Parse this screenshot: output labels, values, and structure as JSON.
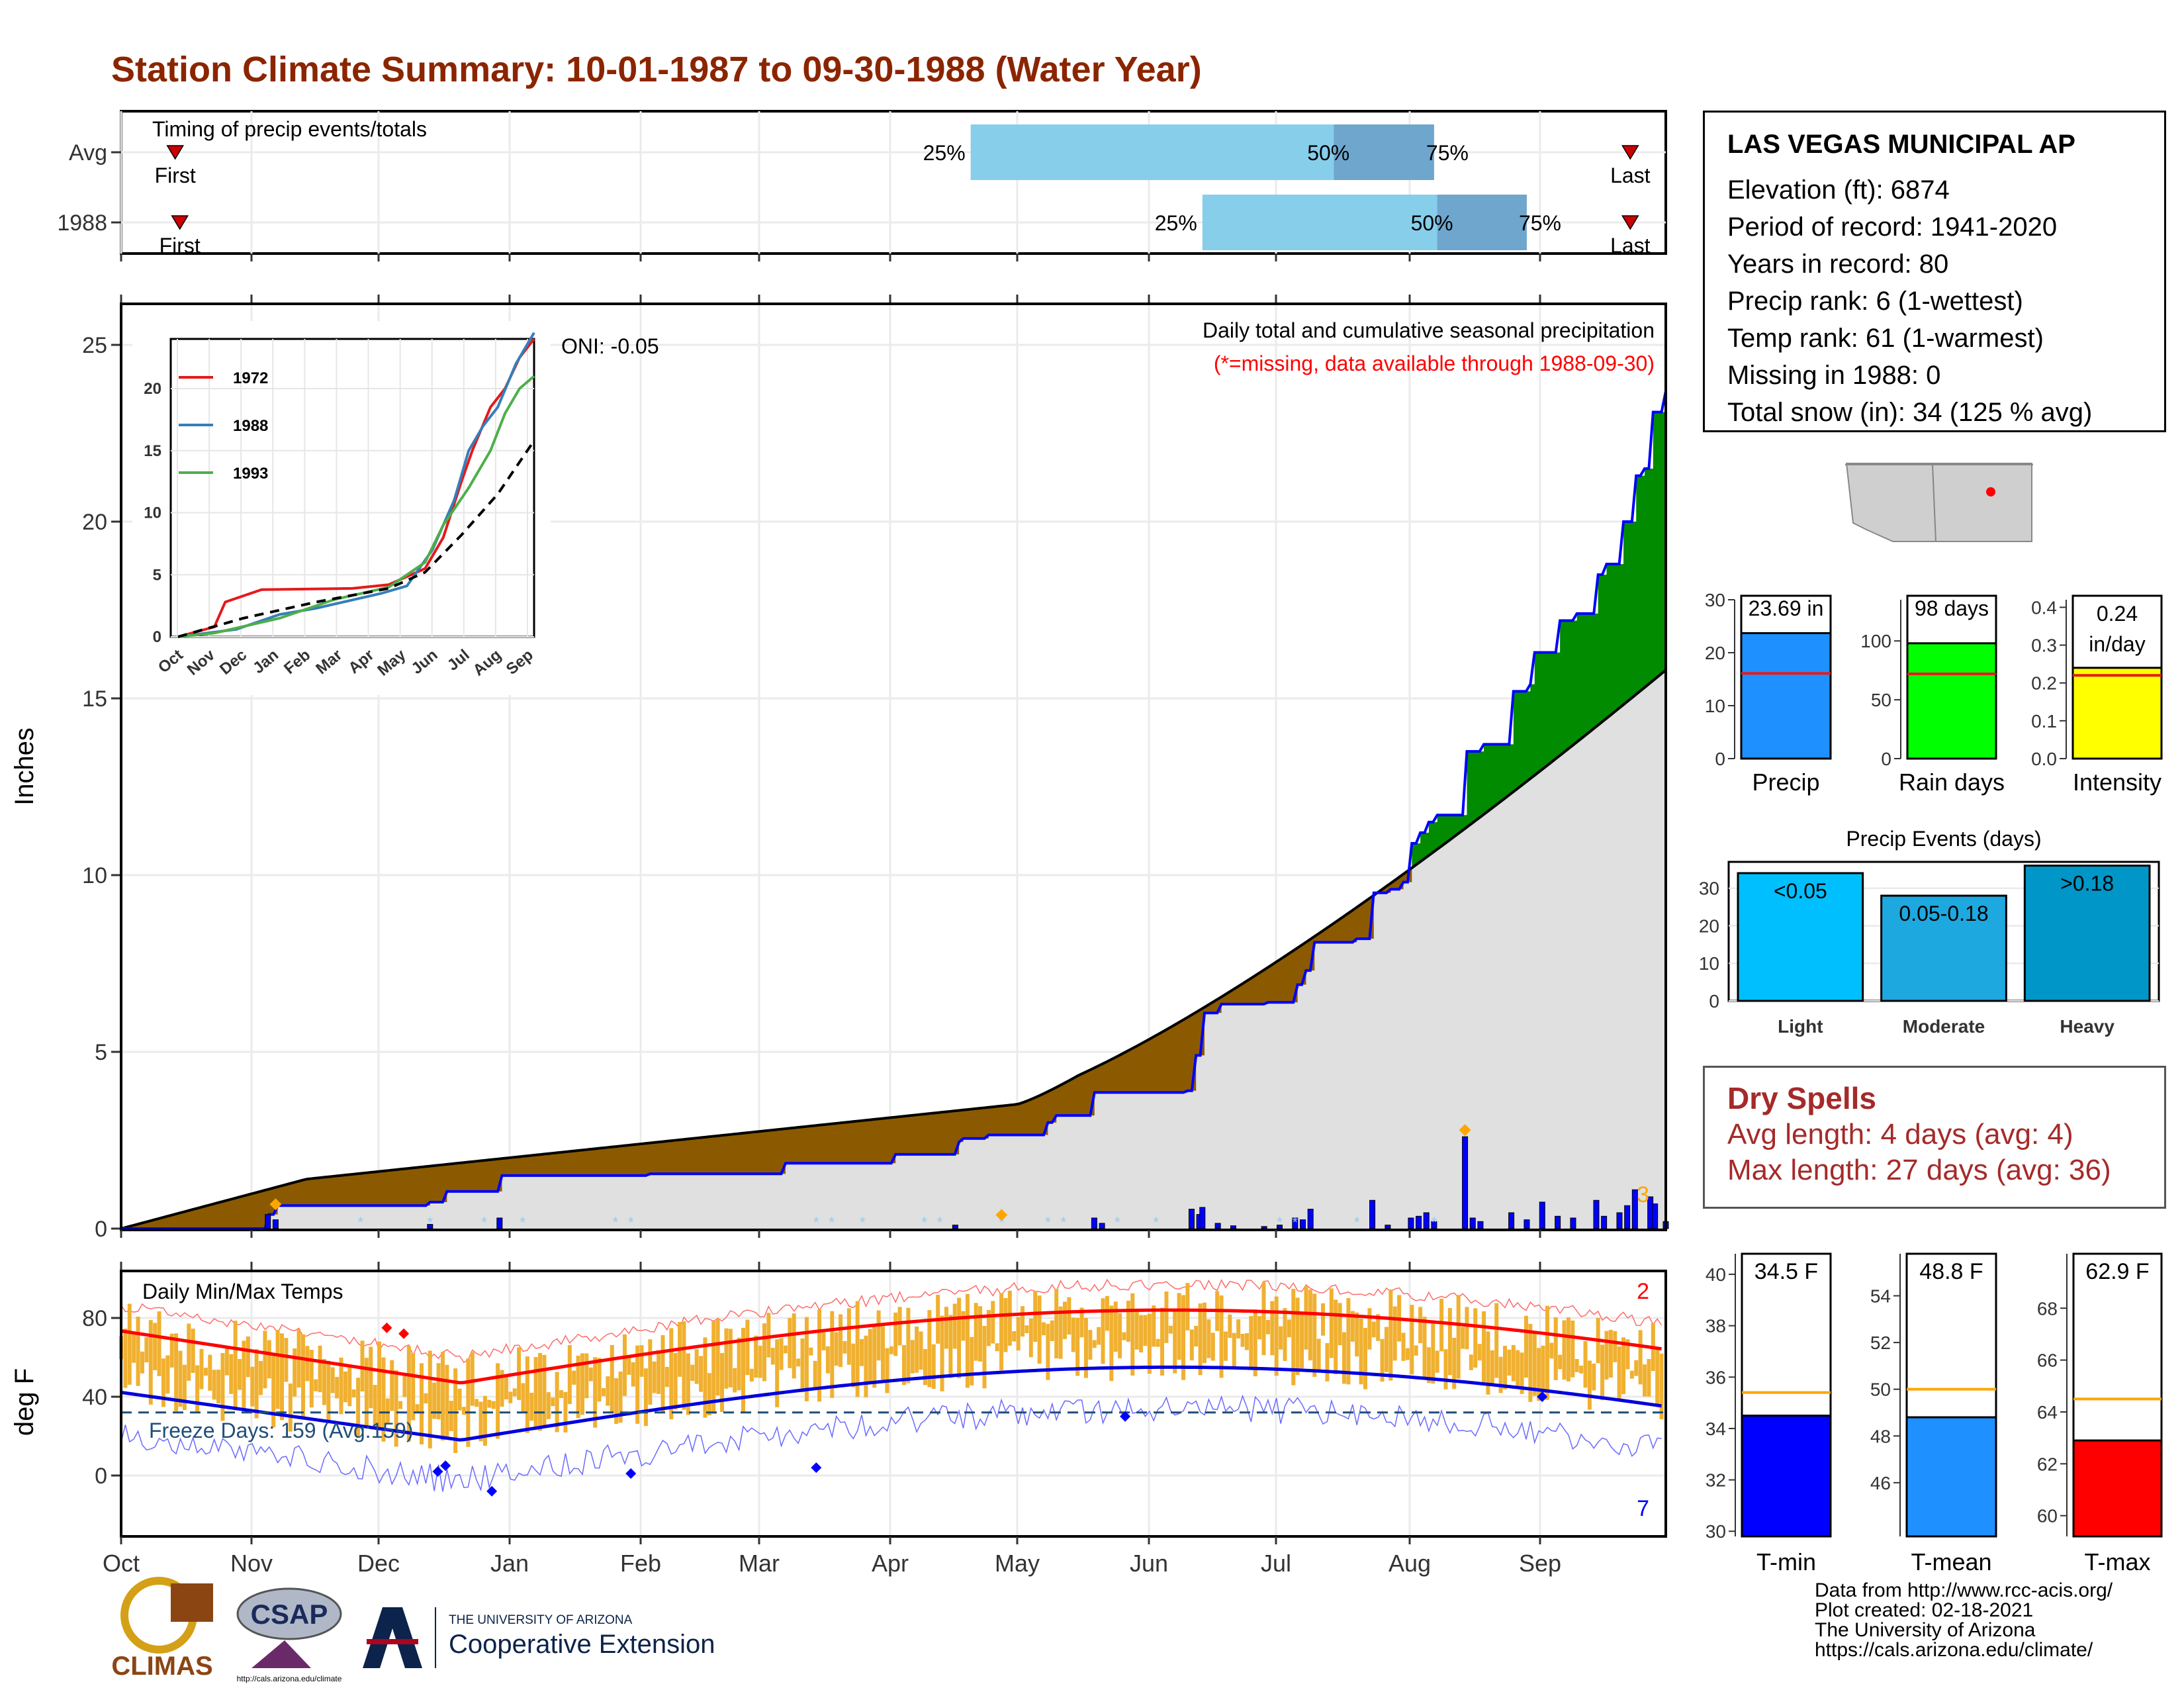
{
  "title": "Station Climate Summary: 10-01-1987 to 09-30-1988 (Water Year)",
  "timing_panel": {
    "label": "Timing of precip events/totals",
    "rows": [
      {
        "name": "Avg",
        "first": 0.035,
        "last": 0.977,
        "p25": 0.55,
        "p50": 0.785,
        "p75": 0.85
      },
      {
        "name": "1988",
        "first": 0.038,
        "last": 0.977,
        "p25": 0.7,
        "p50": 0.852,
        "p75": 0.91
      }
    ],
    "labels": {
      "first": "First",
      "last": "Last",
      "p25": "25%",
      "p50": "50%",
      "p75": "75%"
    },
    "colors": {
      "light": "#87ceeb",
      "dark": "#6ea6cd",
      "marker": "#cc0000"
    }
  },
  "precip_panel": {
    "ylabel": "Inches",
    "annotation_title": "Daily total and cumulative seasonal precipitation",
    "annotation_missing": "(*=missing, data available through 1988-09-30)",
    "oni": "ONI: -0.05",
    "corner_count": "3",
    "y_ticks": [
      "0",
      "5",
      "10",
      "15",
      "20",
      "25"
    ]
  },
  "inset": {
    "series": [
      "1972",
      "1988",
      "1993"
    ],
    "colors": [
      "#e41a1c",
      "#377eb8",
      "#4daf4a"
    ],
    "y_ticks": [
      "0",
      "5",
      "10",
      "15",
      "20"
    ],
    "x_ticks": [
      "Oct",
      "Nov",
      "Dec",
      "Jan",
      "Feb",
      "Mar",
      "Apr",
      "May",
      "Jun",
      "Jul",
      "Aug",
      "Sep"
    ]
  },
  "temp_panel": {
    "ylabel": "deg F",
    "title": "Daily Min/Max Temps",
    "freeze_text": "Freeze Days: 159 (Avg:159)",
    "count_high": "2",
    "count_low": "7",
    "y_ticks": [
      "0",
      "40",
      "80"
    ]
  },
  "months": [
    "Oct",
    "Nov",
    "Dec",
    "Jan",
    "Feb",
    "Mar",
    "Apr",
    "May",
    "Jun",
    "Jul",
    "Aug",
    "Sep"
  ],
  "station": {
    "name": "LAS VEGAS MUNICIPAL AP",
    "lines": [
      "Elevation (ft): 6874",
      "Period of record: 1941-2020",
      "Years in record: 80",
      "Precip rank: 6 (1-wettest)",
      "Temp rank: 61 (1-warmest)",
      "Missing in 1988: 0",
      "Total snow (in): 34 (125 % avg)"
    ]
  },
  "bars_small": [
    {
      "label": "Precip",
      "value_text": "23.69 in",
      "value": 23.69,
      "avg": 16.1,
      "ymax": 30,
      "ticks": [
        "0",
        "10",
        "20",
        "30"
      ],
      "tickvals": [
        0,
        10,
        20,
        30
      ],
      "color": "#1e90ff",
      "avg_color": "#e41a1c"
    },
    {
      "label": "Rain days",
      "value_text": "98 days",
      "value": 98,
      "avg": 72,
      "ymax": 135,
      "ticks": [
        "0",
        "50",
        "100"
      ],
      "tickvals": [
        0,
        50,
        100
      ],
      "color": "#00ff00",
      "avg_color": "#e41a1c"
    },
    {
      "label": "Intensity",
      "value_text": "0.24 in/day",
      "value": 0.24,
      "avg": 0.22,
      "ymax": 0.42,
      "ticks": [
        "0.0",
        "0.1",
        "0.2",
        "0.3",
        "0.4"
      ],
      "tickvals": [
        0,
        0.1,
        0.2,
        0.3,
        0.4
      ],
      "color": "#ffff00",
      "avg_color": "#e41a1c"
    }
  ],
  "precip_events": {
    "title": "Precip Events (days)",
    "ticks": [
      "0",
      "10",
      "20",
      "30"
    ],
    "tickvals": [
      0,
      10,
      20,
      30
    ],
    "ymax": 37,
    "bars": [
      {
        "label": "Light",
        "cat": "<0.05",
        "value": 34,
        "color": "#00bfff"
      },
      {
        "label": "Moderate",
        "cat": "0.05-0.18",
        "value": 28,
        "color": "#1ea8e0"
      },
      {
        "label": "Heavy",
        "cat": ">0.18",
        "value": 36,
        "color": "#0096c8"
      }
    ]
  },
  "dry_spells": {
    "title": "Dry Spells",
    "avg": "Avg length: 4 days (avg: 4)",
    "max": "Max length: 27 days (avg: 36)",
    "color": "#a52a2a"
  },
  "temp_bars": [
    {
      "label": "T-min",
      "value_text": "34.5 F",
      "value": 34.5,
      "avg": 35.4,
      "ymin": 29.8,
      "ymax": 40.8,
      "ticks": [
        "30",
        "32",
        "34",
        "36",
        "38",
        "40"
      ],
      "tickvals": [
        30,
        32,
        34,
        36,
        38,
        40
      ],
      "color": "#0000ff"
    },
    {
      "label": "T-mean",
      "value_text": "48.8 F",
      "value": 48.8,
      "avg": 50.0,
      "ymin": 43.7,
      "ymax": 55.8,
      "ticks": [
        "46",
        "48",
        "50",
        "52",
        "54"
      ],
      "tickvals": [
        46,
        48,
        50,
        52,
        54
      ],
      "color": "#1e90ff"
    },
    {
      "label": "T-max",
      "value_text": "62.9 F",
      "value": 62.9,
      "avg": 64.5,
      "ymin": 59.2,
      "ymax": 70.1,
      "ticks": [
        "60",
        "62",
        "64",
        "66",
        "68"
      ],
      "tickvals": [
        60,
        62,
        64,
        66,
        68
      ],
      "color": "#ff0000"
    }
  ],
  "credits": [
    "Data from http://www.rcc-acis.org/",
    "Plot created: 02-18-2021",
    "The University of Arizona",
    "https://cals.arizona.edu/climate/"
  ],
  "logos": {
    "climas": "CLIMAS",
    "csap": "CSAP",
    "csap_url": "http://cals.arizona.edu/climate",
    "ua_small": "THE UNIVERSITY OF ARIZONA",
    "ua_big": "Cooperative Extension"
  }
}
